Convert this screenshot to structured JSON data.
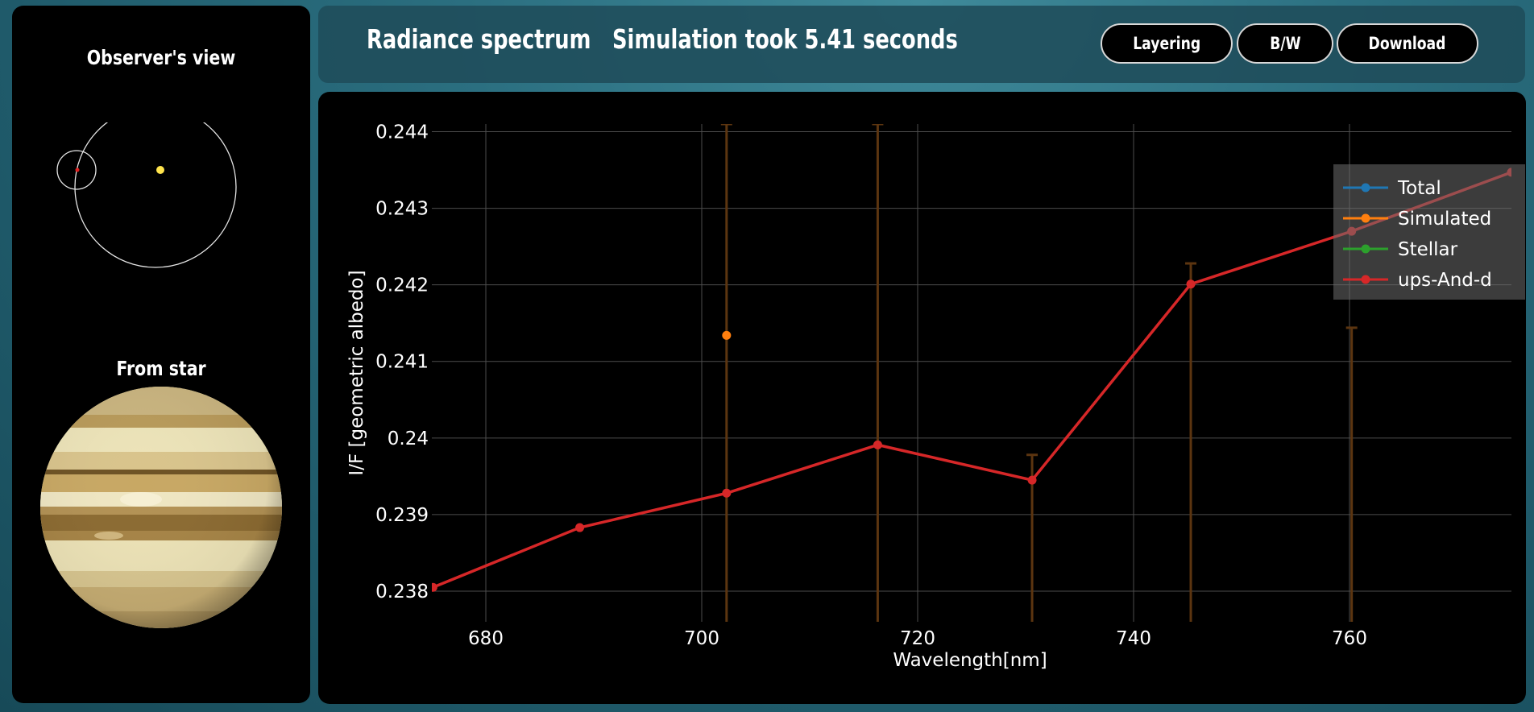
{
  "sidebar": {
    "observer_title": "Observer's view",
    "star_title": "From star"
  },
  "header": {
    "title": "Radiance spectrum",
    "status": "Simulation took 5.41 seconds",
    "buttons": [
      "Layering",
      "B/W",
      "Download"
    ]
  },
  "colors": {
    "total": "#1f77b4",
    "simulated": "#ff7f0e",
    "stellar": "#2ca02c",
    "planet": "#d62728"
  },
  "chart_data": {
    "type": "line",
    "xlabel": "Wavelength[nm]",
    "ylabel": "I/F [geometric albedo]",
    "xlim": [
      675,
      775
    ],
    "ylim": [
      0.2376,
      0.2441
    ],
    "xticks": [
      680,
      700,
      720,
      740,
      760
    ],
    "xtick_labels": [
      "680",
      "700",
      "720",
      "740",
      "760"
    ],
    "yticks": [
      0.238,
      0.239,
      0.24,
      0.241,
      0.242,
      0.243,
      0.244
    ],
    "ytick_labels": [
      "0.238",
      "0.239",
      "0.24",
      "0.241",
      "0.242",
      "0.243",
      "0.244"
    ],
    "legend_position": "top-right",
    "series": [
      {
        "name": "Total",
        "x": [],
        "y": []
      },
      {
        "name": "Simulated",
        "x": [
          702.3
        ],
        "y": [
          0.24134
        ],
        "error_bars": [
          {
            "x": 702.3,
            "low": 0.2376,
            "high": 0.2441
          },
          {
            "x": 716.3,
            "low": 0.2376,
            "high": 0.2441
          },
          {
            "x": 730.6,
            "low": 0.2376,
            "high": 0.23978
          },
          {
            "x": 745.3,
            "low": 0.2376,
            "high": 0.24228
          },
          {
            "x": 760.2,
            "low": 0.2376,
            "high": 0.24144
          }
        ]
      },
      {
        "name": "Stellar",
        "x": [],
        "y": []
      },
      {
        "name": "ups-And-d",
        "x": [
          675.1,
          688.7,
          702.3,
          716.3,
          730.6,
          745.3,
          760.2,
          775.0
        ],
        "y": [
          0.23805,
          0.23883,
          0.23928,
          0.23991,
          0.23945,
          0.24201,
          0.2427,
          0.24347
        ]
      }
    ]
  }
}
